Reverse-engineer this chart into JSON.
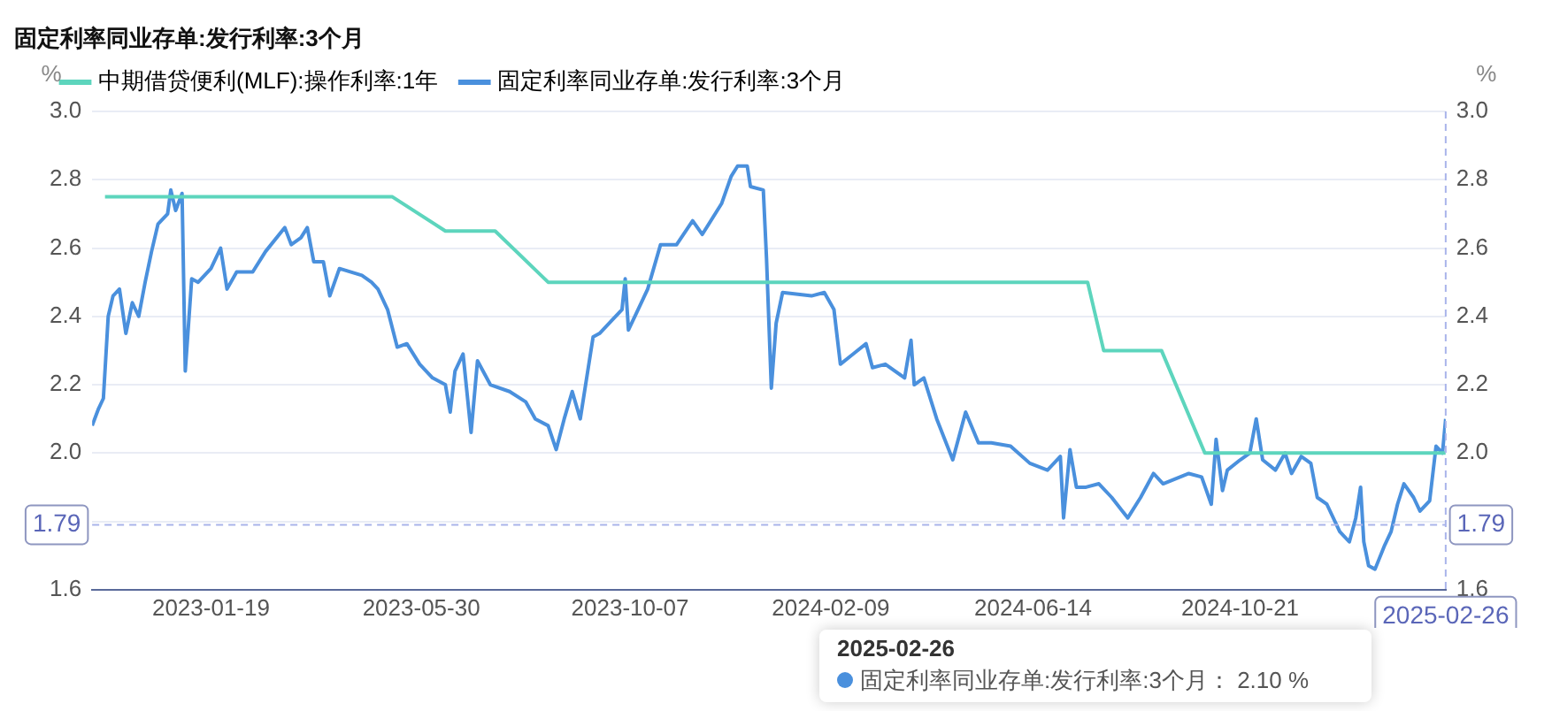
{
  "chart_data": {
    "type": "line",
    "title": "固定利率同业存单:发行利率:3个月",
    "legend": "top",
    "grid": "y",
    "marker": "none",
    "ylabel": "%",
    "y2label": "%",
    "xlim": [
      "2022-11-06",
      "2025-02-26"
    ],
    "xticks": [
      "2023-01-19",
      "2023-05-30",
      "2023-10-07",
      "2024-02-09",
      "2024-06-14",
      "2024-10-21"
    ],
    "ylim": [
      1.6,
      3.0
    ],
    "yticks": [
      {
        "value": 1.6,
        "label": "1.6"
      },
      {
        "value": 1.8,
        "label": null
      },
      {
        "value": 2.0,
        "label": "2.0"
      },
      {
        "value": 2.2,
        "label": "2.2"
      },
      {
        "value": 2.4,
        "label": "2.4"
      },
      {
        "value": 2.6,
        "label": "2.6"
      },
      {
        "value": 2.8,
        "label": "2.8"
      },
      {
        "value": 3.0,
        "label": "3.0"
      }
    ],
    "y2lim": [
      1.6,
      3.0
    ],
    "y2ticks": [
      {
        "value": 1.6,
        "label": "1.6"
      },
      {
        "value": 1.8,
        "label": null
      },
      {
        "value": 2.0,
        "label": "2.0"
      },
      {
        "value": 2.2,
        "label": "2.2"
      },
      {
        "value": 2.4,
        "label": "2.4"
      },
      {
        "value": 2.6,
        "label": "2.6"
      },
      {
        "value": 2.8,
        "label": "2.8"
      },
      {
        "value": 3.0,
        "label": "3.0"
      }
    ],
    "series": [
      {
        "name": "中期借贷便利(MLF):操作利率:1年",
        "color": "#5dd5bd",
        "x": [
          "2022-11-14",
          "2023-05-12",
          "2023-06-14",
          "2023-07-15",
          "2023-08-17",
          "2024-07-18",
          "2024-07-28",
          "2024-09-02",
          "2024-09-29",
          "2025-02-26"
        ],
        "values": [
          2.75,
          2.75,
          2.65,
          2.65,
          2.5,
          2.5,
          2.3,
          2.3,
          2.0,
          2.0
        ]
      },
      {
        "name": "固定利率同业存单:发行利率:3个月",
        "color": "#4a90dd",
        "x": [
          "2022-11-06",
          "2022-11-10",
          "2022-11-13",
          "2022-11-16",
          "2022-11-19",
          "2022-11-23",
          "2022-11-27",
          "2022-12-01",
          "2022-12-05",
          "2022-12-09",
          "2022-12-13",
          "2022-12-17",
          "2022-12-23",
          "2022-12-25",
          "2022-12-28",
          "2023-01-01",
          "2023-01-03",
          "2023-01-07",
          "2023-01-11",
          "2023-01-19",
          "2023-01-25",
          "2023-01-29",
          "2023-02-04",
          "2023-02-14",
          "2023-02-22",
          "2023-03-06",
          "2023-03-10",
          "2023-03-16",
          "2023-03-20",
          "2023-03-24",
          "2023-03-30",
          "2023-04-03",
          "2023-04-09",
          "2023-04-23",
          "2023-04-29",
          "2023-05-03",
          "2023-05-09",
          "2023-05-15",
          "2023-05-21",
          "2023-05-29",
          "2023-06-06",
          "2023-06-14",
          "2023-06-17",
          "2023-06-20",
          "2023-06-25",
          "2023-06-30",
          "2023-07-04",
          "2023-07-12",
          "2023-07-24",
          "2023-08-03",
          "2023-08-09",
          "2023-08-17",
          "2023-08-22",
          "2023-08-27",
          "2023-09-01",
          "2023-09-06",
          "2023-09-14",
          "2023-09-18",
          "2023-09-26",
          "2023-10-02",
          "2023-10-04",
          "2023-10-06",
          "2023-10-12",
          "2023-10-18",
          "2023-10-26",
          "2023-11-05",
          "2023-11-15",
          "2023-11-21",
          "2023-12-03",
          "2023-12-09",
          "2023-12-13",
          "2023-12-19",
          "2023-12-21",
          "2023-12-29",
          "2023-12-31",
          "2024-01-03",
          "2024-01-06",
          "2024-01-10",
          "2024-01-28",
          "2024-02-05",
          "2024-02-11",
          "2024-02-15",
          "2024-02-23",
          "2024-03-02",
          "2024-03-06",
          "2024-03-14",
          "2024-03-26",
          "2024-03-30",
          "2024-04-01",
          "2024-04-07",
          "2024-04-15",
          "2024-04-25",
          "2024-05-03",
          "2024-05-11",
          "2024-05-19",
          "2024-05-31",
          "2024-06-12",
          "2024-06-23",
          "2024-07-01",
          "2024-07-03",
          "2024-07-07",
          "2024-07-11",
          "2024-07-17",
          "2024-07-25",
          "2024-08-02",
          "2024-08-12",
          "2024-08-20",
          "2024-08-28",
          "2024-09-03",
          "2024-09-19",
          "2024-09-27",
          "2024-10-03",
          "2024-10-06",
          "2024-10-10",
          "2024-10-13",
          "2024-10-21",
          "2024-10-27",
          "2024-10-31",
          "2024-11-04",
          "2024-11-12",
          "2024-11-18",
          "2024-11-22",
          "2024-11-28",
          "2024-12-04",
          "2024-12-08",
          "2024-12-14",
          "2024-12-22",
          "2024-12-28",
          "2025-01-01",
          "2025-01-04",
          "2025-01-06",
          "2025-01-09",
          "2025-01-13",
          "2025-01-19",
          "2025-01-23",
          "2025-01-27",
          "2025-01-31",
          "2025-02-06",
          "2025-02-10",
          "2025-02-16",
          "2025-02-20",
          "2025-02-24",
          "2025-02-26"
        ],
        "values": [
          2.08,
          2.13,
          2.16,
          2.4,
          2.46,
          2.48,
          2.35,
          2.44,
          2.4,
          2.5,
          2.59,
          2.67,
          2.7,
          2.77,
          2.71,
          2.76,
          2.24,
          2.51,
          2.5,
          2.54,
          2.6,
          2.48,
          2.53,
          2.53,
          2.59,
          2.66,
          2.61,
          2.63,
          2.66,
          2.56,
          2.56,
          2.46,
          2.54,
          2.52,
          2.5,
          2.48,
          2.42,
          2.31,
          2.32,
          2.26,
          2.22,
          2.2,
          2.12,
          2.24,
          2.29,
          2.06,
          2.27,
          2.2,
          2.18,
          2.15,
          2.1,
          2.08,
          2.01,
          2.1,
          2.18,
          2.1,
          2.34,
          2.35,
          2.39,
          2.42,
          2.51,
          2.36,
          2.42,
          2.48,
          2.61,
          2.61,
          2.68,
          2.64,
          2.73,
          2.81,
          2.84,
          2.84,
          2.78,
          2.77,
          2.57,
          2.19,
          2.38,
          2.47,
          2.46,
          2.47,
          2.42,
          2.26,
          2.29,
          2.32,
          2.25,
          2.26,
          2.22,
          2.33,
          2.2,
          2.22,
          2.1,
          1.98,
          2.12,
          2.03,
          2.03,
          2.02,
          1.97,
          1.95,
          1.99,
          1.81,
          2.01,
          1.9,
          1.9,
          1.91,
          1.87,
          1.81,
          1.87,
          1.94,
          1.91,
          1.94,
          1.93,
          1.85,
          2.04,
          1.89,
          1.95,
          1.98,
          2.0,
          2.1,
          1.98,
          1.95,
          2.0,
          1.94,
          1.99,
          1.97,
          1.87,
          1.85,
          1.77,
          1.74,
          1.81,
          1.9,
          1.74,
          1.67,
          1.66,
          1.73,
          1.77,
          1.85,
          1.91,
          1.87,
          1.83,
          1.86,
          2.02,
          2.0,
          2.1
        ]
      }
    ],
    "ref_lines": [
      {
        "axis": "y",
        "value": 1.79,
        "label": "1.79",
        "line_style": "dashed"
      },
      {
        "axis": "x",
        "value": "2025-02-26",
        "label": "2025-02-26",
        "line_style": "dashed"
      }
    ],
    "annotations": [
      "2025-02-26",
      "固定利率同业存单:发行利率:3个月：  2.10 %"
    ]
  }
}
